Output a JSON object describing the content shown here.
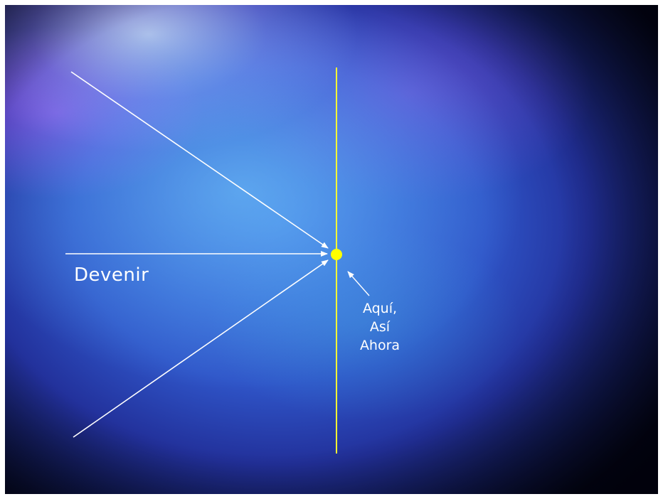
{
  "labels": {
    "devenir": "Devenir",
    "right_lines": [
      "Aquí,",
      "Así",
      "Ahora"
    ]
  },
  "colors": {
    "arrow": "#ffffff",
    "vertical_line": "#ffff33",
    "point": "#ffff00"
  }
}
